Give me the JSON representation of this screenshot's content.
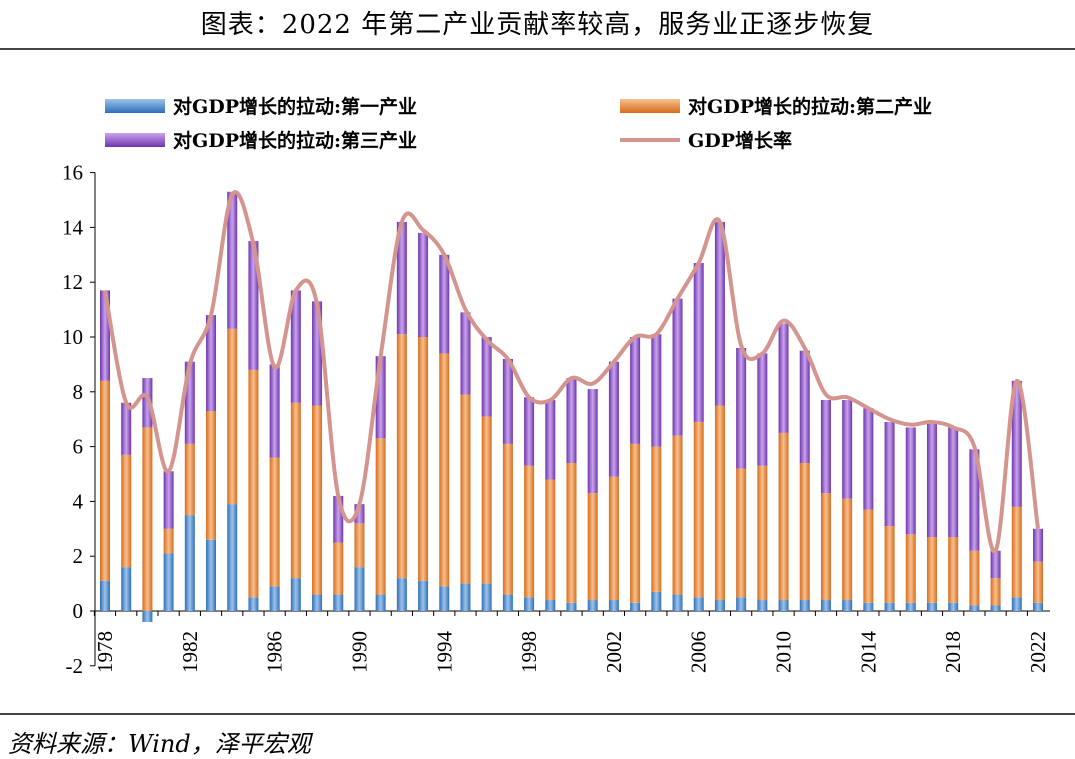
{
  "title": "图表：2022 年第二产业贡献率较高，服务业正逐步恢复",
  "source": "资料来源：Wind，泽平宏观",
  "legend": {
    "primary": "对GDP增长的拉动:第一产业",
    "secondary": "对GDP增长的拉动:第二产业",
    "tertiary": "对GDP增长的拉动:第三产业",
    "growth": "GDP增长率"
  },
  "colors": {
    "primary": "#4a86c8",
    "secondary": "#e8842e",
    "tertiary": "#8a4fc8",
    "growth": "#d4958f"
  },
  "chart_data": {
    "type": "bar",
    "stacked": true,
    "ylim": [
      -2,
      16
    ],
    "yticks": [
      -2,
      0,
      2,
      4,
      6,
      8,
      10,
      12,
      14,
      16
    ],
    "xtick_labels": [
      "1978",
      "1982",
      "1986",
      "1990",
      "1994",
      "1998",
      "2002",
      "2006",
      "2010",
      "2014",
      "2018",
      "2022"
    ],
    "categories": [
      1978,
      1979,
      1980,
      1981,
      1982,
      1983,
      1984,
      1985,
      1986,
      1987,
      1988,
      1989,
      1990,
      1991,
      1992,
      1993,
      1994,
      1995,
      1996,
      1997,
      1998,
      1999,
      2000,
      2001,
      2002,
      2003,
      2004,
      2005,
      2006,
      2007,
      2008,
      2009,
      2010,
      2011,
      2012,
      2013,
      2014,
      2015,
      2016,
      2017,
      2018,
      2019,
      2020,
      2021,
      2022
    ],
    "series": [
      {
        "name": "对GDP增长的拉动:第一产业",
        "values": [
          1.1,
          1.6,
          -0.4,
          2.1,
          3.5,
          2.6,
          3.9,
          0.5,
          0.9,
          1.2,
          0.6,
          0.6,
          1.6,
          0.6,
          1.2,
          1.1,
          0.9,
          1.0,
          1.0,
          0.6,
          0.5,
          0.4,
          0.3,
          0.4,
          0.4,
          0.3,
          0.7,
          0.6,
          0.5,
          0.4,
          0.5,
          0.4,
          0.4,
          0.4,
          0.4,
          0.4,
          0.3,
          0.3,
          0.3,
          0.3,
          0.3,
          0.2,
          0.2,
          0.5,
          0.3
        ]
      },
      {
        "name": "对GDP增长的拉动:第二产业",
        "values": [
          7.3,
          4.1,
          6.7,
          0.9,
          2.6,
          4.7,
          6.4,
          8.3,
          4.7,
          6.4,
          6.9,
          1.9,
          1.6,
          5.7,
          8.9,
          8.9,
          8.5,
          6.9,
          6.1,
          5.5,
          4.8,
          4.4,
          5.1,
          3.9,
          4.5,
          5.8,
          5.3,
          5.8,
          6.4,
          7.1,
          4.7,
          4.9,
          6.1,
          5.0,
          3.9,
          3.7,
          3.4,
          2.8,
          2.5,
          2.4,
          2.4,
          2.0,
          1.0,
          3.3,
          1.5
        ]
      },
      {
        "name": "对GDP增长的拉动:第三产业",
        "values": [
          3.3,
          1.9,
          1.8,
          2.1,
          3.0,
          3.5,
          5.0,
          4.7,
          3.4,
          4.1,
          3.8,
          1.7,
          0.7,
          3.0,
          4.1,
          3.8,
          3.6,
          3.0,
          2.9,
          3.1,
          2.5,
          2.9,
          3.1,
          3.8,
          4.2,
          3.9,
          4.1,
          5.0,
          5.8,
          6.7,
          4.4,
          4.1,
          4.0,
          4.1,
          3.4,
          3.6,
          3.7,
          3.8,
          3.9,
          4.2,
          4.0,
          3.7,
          1.0,
          4.6,
          1.2
        ]
      },
      {
        "name": "GDP增长率",
        "type": "line",
        "values": [
          11.7,
          7.6,
          7.8,
          5.1,
          9.0,
          10.8,
          15.2,
          13.4,
          8.9,
          11.7,
          11.2,
          4.2,
          3.9,
          9.3,
          14.2,
          13.9,
          13.0,
          11.0,
          9.9,
          9.2,
          7.8,
          7.7,
          8.5,
          8.3,
          9.1,
          10.0,
          10.1,
          11.4,
          12.7,
          14.2,
          9.7,
          9.4,
          10.6,
          9.6,
          7.9,
          7.8,
          7.4,
          7.0,
          6.8,
          6.9,
          6.7,
          6.0,
          2.2,
          8.4,
          3.0
        ]
      }
    ]
  }
}
